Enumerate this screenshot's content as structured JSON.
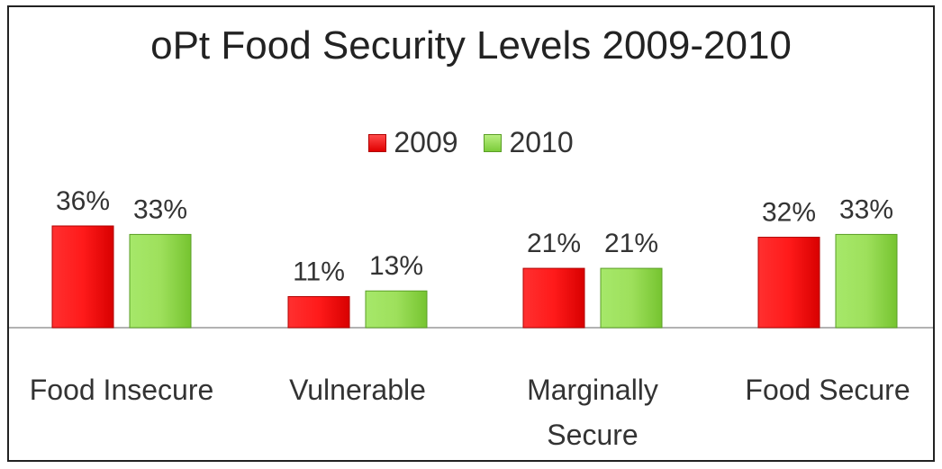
{
  "chart_data": {
    "type": "bar",
    "title": "oPt Food Security Levels 2009-2010",
    "categories": [
      "Food Insecure",
      "Vulnerable",
      "Marginally Secure",
      "Food Secure"
    ],
    "series": [
      {
        "name": "2009",
        "values": [
          36,
          11,
          21,
          32
        ],
        "labels": [
          "36%",
          "11%",
          "21%",
          "32%"
        ],
        "color": "#e81010"
      },
      {
        "name": "2010",
        "values": [
          33,
          13,
          21,
          33
        ],
        "labels": [
          "33%",
          "13%",
          "21%",
          "33%"
        ],
        "color": "#8cd64a"
      }
    ],
    "ylim": [
      0,
      40
    ],
    "grid": false,
    "legend_position": "top"
  }
}
